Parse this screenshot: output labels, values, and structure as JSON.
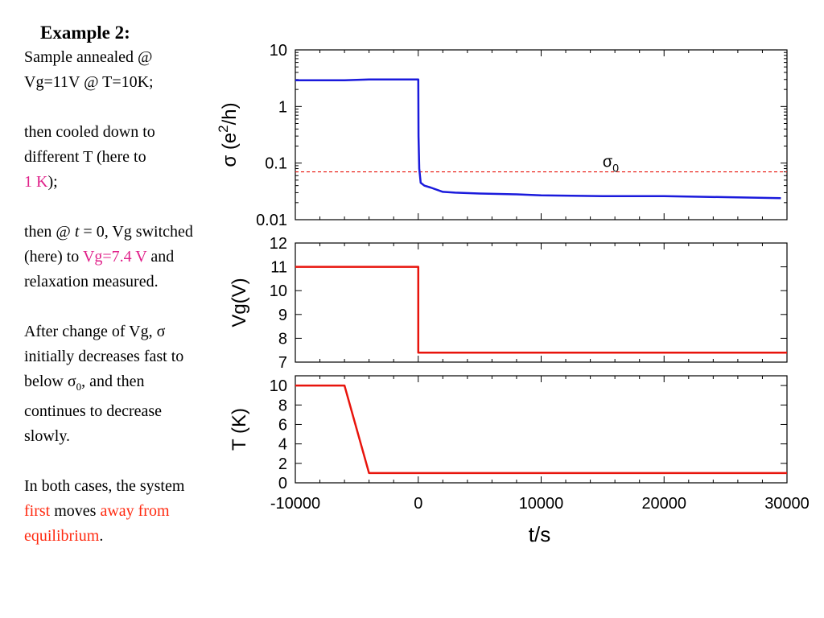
{
  "slide": {
    "heading": "Example 2:",
    "para1": [
      "Sample annealed @",
      "Vg=11V @ T=10K;"
    ],
    "para2": {
      "line1": "then cooled down to",
      "line2": "different T (here to",
      "temp_highlight": "1 K",
      "tail": ");"
    },
    "para3": {
      "pre": "then @ ",
      "t_var": "t",
      "eq": " = 0,  Vg switched",
      "line2_pre": "(here) to ",
      "vg_highlight": "Vg=7.4 V",
      "line2_post": " and",
      "line3": "relaxation measured."
    },
    "para4": {
      "line1_pre": "After change of Vg, ",
      "sigma": "σ",
      "line2": "initially decreases fast to",
      "line3_pre": "below ",
      "sub0": "0",
      "line3_post": ", and then",
      "line4": "continues to decrease",
      "line5": "slowly."
    },
    "para5": {
      "line1": "In both cases, the system",
      "first": "first",
      "moves": " moves ",
      "away": "away from",
      "equilibrium": "equilibrium",
      "period": "."
    }
  },
  "colors": {
    "sigma_line": "#1a1adc",
    "step_line": "#e8140c",
    "threshold": "#e8140c",
    "pink": "#e0218a",
    "red_text": "#ff2a10"
  },
  "chart_data": [
    {
      "type": "line",
      "panel": "sigma",
      "ylabel_parts": {
        "sigma": "σ",
        "open": " (e",
        "sup": "2",
        "close": "/h)"
      },
      "yscale": "log",
      "ylim": [
        0.01,
        10
      ],
      "yticks": [
        "10",
        "1",
        "0.1",
        "0.01"
      ],
      "xlim": [
        -10000,
        30000
      ],
      "annotation": {
        "sigma": "σ",
        "sub": "0"
      },
      "threshold": 0.07,
      "series": [
        {
          "x": [
            -10000,
            -6000,
            -4000,
            -1000,
            0,
            20,
            80,
            200,
            500,
            1000,
            2000,
            3000,
            5000,
            8000,
            10000,
            15000,
            20000,
            25000,
            29500
          ],
          "y": [
            2.9,
            2.9,
            3.0,
            3.0,
            3.0,
            0.3,
            0.08,
            0.045,
            0.04,
            0.037,
            0.031,
            0.03,
            0.029,
            0.028,
            0.027,
            0.026,
            0.026,
            0.025,
            0.024
          ]
        }
      ]
    },
    {
      "type": "line",
      "panel": "vg",
      "ylabel": "Vg(V)",
      "ylim": [
        7,
        12
      ],
      "yticks": [
        "12",
        "11",
        "10",
        "9",
        "8",
        "7"
      ],
      "xlim": [
        -10000,
        30000
      ],
      "series": [
        {
          "x": [
            -10000,
            0,
            0,
            30000
          ],
          "y": [
            11,
            11,
            7.4,
            7.4
          ]
        }
      ]
    },
    {
      "type": "line",
      "panel": "temperature",
      "ylabel": "T (K)",
      "ylim": [
        0,
        11
      ],
      "yticks": [
        "10",
        "8",
        "6",
        "4",
        "2",
        "0"
      ],
      "xlim": [
        -10000,
        30000
      ],
      "xticks": [
        "-10000",
        "0",
        "10000",
        "20000",
        "30000"
      ],
      "xlabel": "t/s",
      "series": [
        {
          "x": [
            -10000,
            -6000,
            -4000,
            30000
          ],
          "y": [
            10,
            10,
            1,
            1
          ]
        }
      ]
    }
  ]
}
